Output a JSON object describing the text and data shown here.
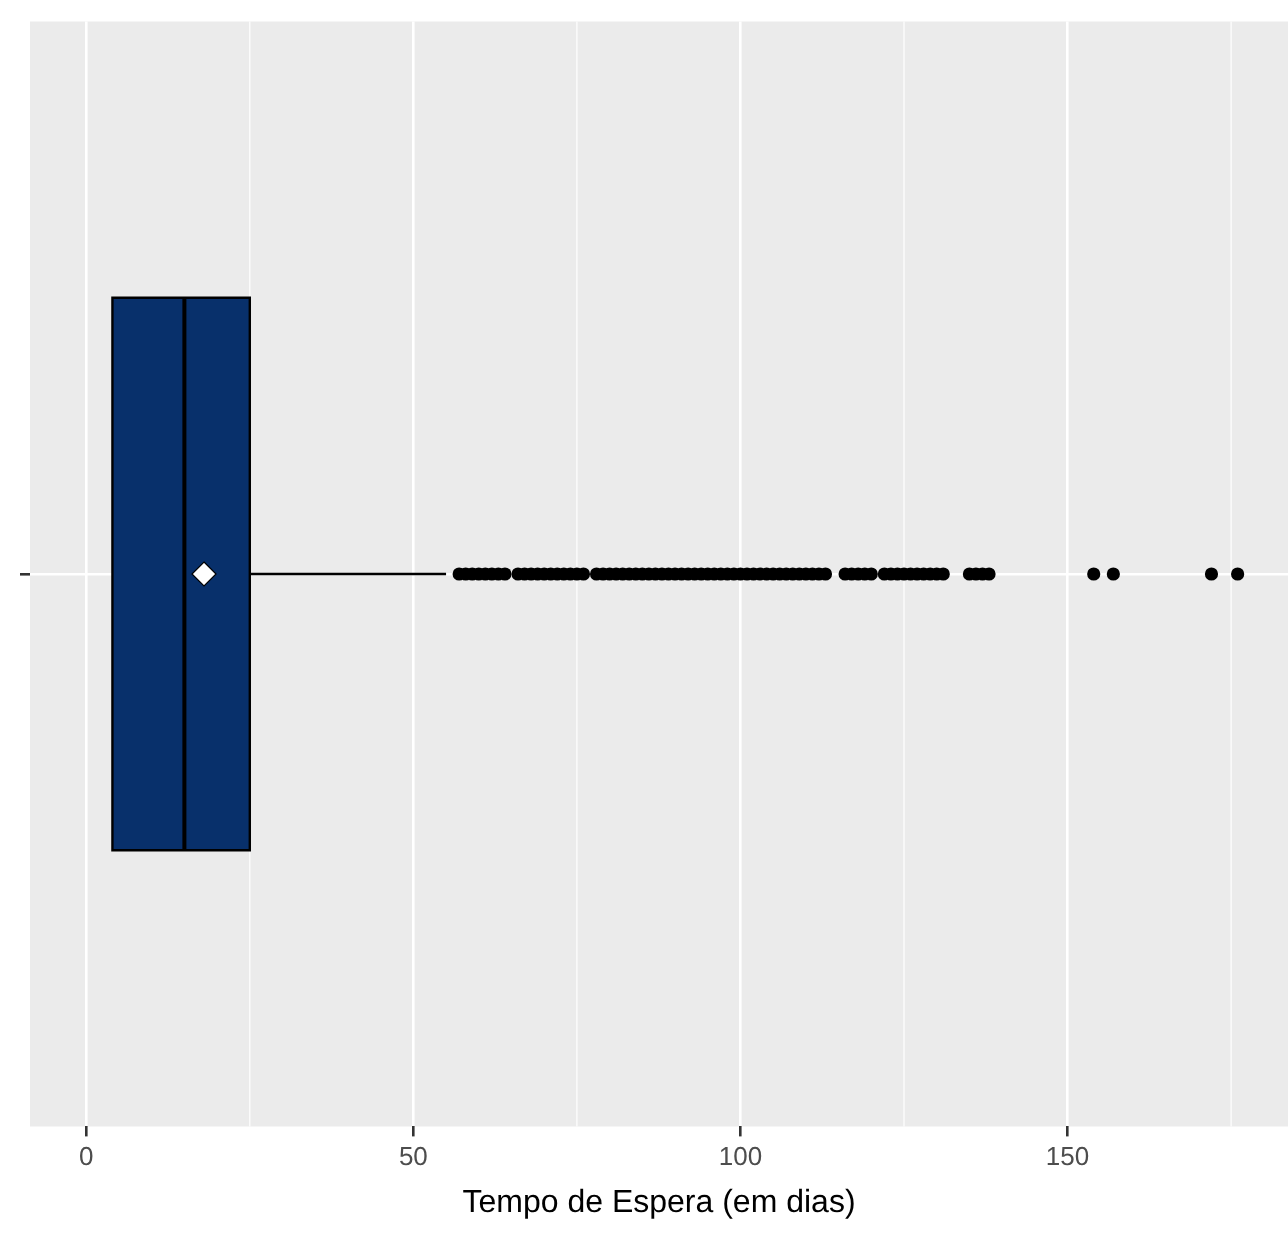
{
  "chart_data": {
    "type": "box",
    "orientation": "horizontal",
    "xlabel": "Tempo de Espera (em dias)",
    "categories": [
      null
    ],
    "xlim": [
      -8.6,
      183.7
    ],
    "xticks": [
      0,
      50,
      100,
      150
    ],
    "grid": true,
    "legend": false,
    "color": "#08306b",
    "boxes": [
      {
        "low": 4,
        "q1": 4,
        "median": 15,
        "q3": 25,
        "high": 55,
        "mean": 18,
        "outliers": [
          57,
          58,
          59,
          60,
          61,
          62,
          63,
          64,
          66,
          67,
          68,
          69,
          70,
          71,
          72,
          73,
          74,
          75,
          76,
          78,
          79,
          80,
          81,
          82,
          83,
          84,
          85,
          86,
          87,
          88,
          89,
          90,
          91,
          92,
          93,
          94,
          95,
          96,
          97,
          98,
          99,
          100,
          101,
          102,
          103,
          104,
          105,
          106,
          107,
          108,
          109,
          110,
          111,
          112,
          113,
          116,
          117,
          118,
          119,
          120,
          122,
          123,
          124,
          125,
          126,
          127,
          128,
          129,
          130,
          131,
          135,
          136,
          137,
          138,
          154,
          157,
          172,
          176
        ]
      }
    ]
  }
}
